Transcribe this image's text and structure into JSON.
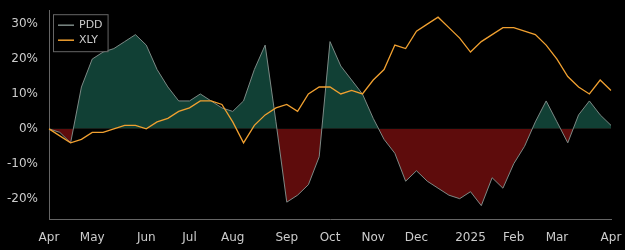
{
  "chart_data": {
    "type": "line",
    "categories": [
      "Apr",
      null,
      null,
      null,
      "May",
      null,
      null,
      null,
      null,
      "Jun",
      null,
      null,
      null,
      "Jul",
      null,
      null,
      null,
      "Aug",
      null,
      null,
      null,
      null,
      "Sep",
      null,
      null,
      null,
      "Oct",
      null,
      null,
      null,
      "Nov",
      null,
      null,
      null,
      "Dec",
      null,
      null,
      null,
      null,
      "2025",
      null,
      null,
      null,
      "Feb",
      null,
      null,
      null,
      "Mar",
      null,
      null,
      null,
      null,
      "Apr"
    ],
    "series": [
      {
        "name": "PDD",
        "color": "#7d8a86",
        "values": [
          0,
          -1,
          -4,
          12,
          20,
          22,
          23,
          25,
          27,
          24,
          17,
          12,
          8,
          8,
          10,
          8,
          6,
          5,
          8,
          17,
          24,
          2,
          -21,
          -19,
          -16,
          -8,
          25,
          18,
          14,
          10,
          3,
          -3,
          -7,
          -15,
          -12,
          -15,
          -17,
          -19,
          -20,
          -18,
          -22,
          -14,
          -17,
          -10,
          -5,
          2,
          8,
          2,
          -4,
          4,
          8,
          4,
          1
        ]
      },
      {
        "name": "XLY",
        "color": "#f0a030",
        "values": [
          0,
          -2,
          -4,
          -3,
          -1,
          -1,
          0,
          1,
          1,
          0,
          2,
          3,
          5,
          6,
          8,
          8,
          7,
          2,
          -4,
          1,
          4,
          6,
          7,
          5,
          10,
          12,
          12,
          10,
          11,
          10,
          14,
          17,
          24,
          23,
          28,
          30,
          32,
          29,
          26,
          22,
          25,
          27,
          29,
          29,
          28,
          27,
          24,
          20,
          15,
          12,
          10,
          14,
          11
        ]
      }
    ],
    "ylim": [
      -26,
      34
    ],
    "yticks": [
      {
        "value": -20,
        "label": "-20%"
      },
      {
        "value": -10,
        "label": "-10%"
      },
      {
        "value": 0,
        "label": "0%"
      },
      {
        "value": 10,
        "label": "10%"
      },
      {
        "value": 20,
        "label": "20%"
      },
      {
        "value": 30,
        "label": "30%"
      }
    ],
    "grid": false,
    "legend": "upper left"
  }
}
